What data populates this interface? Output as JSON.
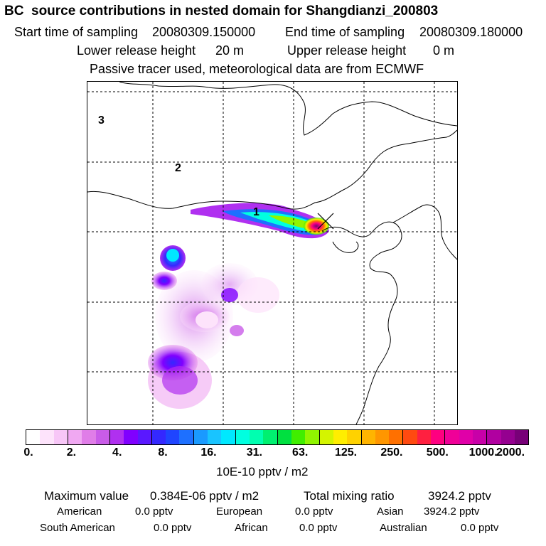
{
  "header": {
    "title": "BC  source contributions in nested domain for Shangdianzi_200803",
    "start_label": "Start time of sampling",
    "start_value": "20080309.150000",
    "end_label": "End time of sampling",
    "end_value": "20080309.180000",
    "lower_label": "Lower release height",
    "lower_value": "20 m",
    "upper_label": "Upper release height",
    "upper_value": "0 m",
    "note": "Passive tracer used, meteorological data are from ECMWF"
  },
  "map": {
    "region_labels": [
      "1",
      "2",
      "3"
    ],
    "receptor_marker": "x-marker-icon"
  },
  "colorbar": {
    "tick_labels": [
      "0.",
      "2.",
      "4.",
      "8.",
      "16.",
      "31.",
      "63.",
      "125.",
      "250.",
      "500.",
      "1000.",
      "2000."
    ],
    "unit": "10E-10 pptv / m2",
    "colors": [
      "#ffffff",
      "#fde3fb",
      "#f7c6f7",
      "#f0a8f2",
      "#e07de8",
      "#c95ce8",
      "#b030f0",
      "#8000ff",
      "#5a18ff",
      "#3428ff",
      "#1f45ff",
      "#1e70ff",
      "#1a9aff",
      "#19c4ff",
      "#00e8ff",
      "#00ffe0",
      "#00ffb0",
      "#00f070",
      "#00e040",
      "#40ee00",
      "#90f500",
      "#d4f400",
      "#ffee00",
      "#ffd200",
      "#ffb400",
      "#ff9600",
      "#ff7000",
      "#ff4a10",
      "#ff2040",
      "#ff0080",
      "#f00098",
      "#e000a8",
      "#c800a8",
      "#b000a0",
      "#950090",
      "#780078"
    ]
  },
  "stats": {
    "max_label": "Maximum value",
    "max_value": "0.384E-06 pptv / m2",
    "total_label": "Total mixing ratio",
    "total_value": "3924.2 pptv",
    "american_label": "American",
    "american_value": "0.0 pptv",
    "european_label": "European",
    "european_value": "0.0 pptv",
    "asian_label": "Asian",
    "asian_value": "3924.2 pptv",
    "south_american_label": "South American",
    "south_american_value": "0.0 pptv",
    "african_label": "African",
    "african_value": "0.0 pptv",
    "australian_label": "Australian",
    "australian_value": "0.0 pptv"
  }
}
